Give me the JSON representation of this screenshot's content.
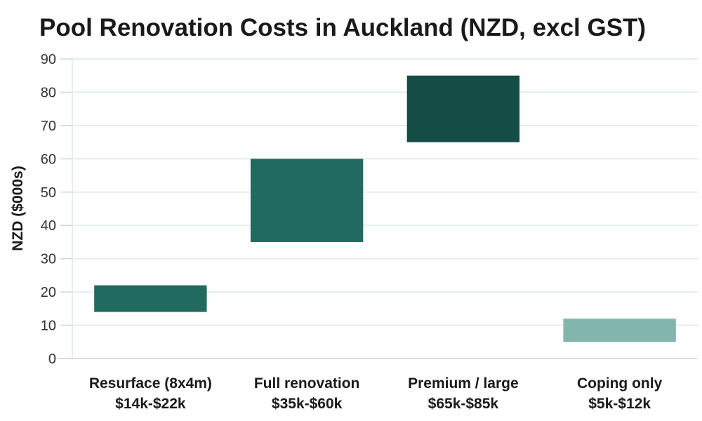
{
  "chart_data": {
    "type": "bar",
    "title": "Pool Renovation Costs in Auckland (NZD, excl GST)",
    "ylabel": "NZD ($000s)",
    "xlabel": "",
    "ylim": [
      0,
      90
    ],
    "yticks": [
      0,
      10,
      20,
      30,
      40,
      50,
      60,
      70,
      80,
      90
    ],
    "grid": true,
    "categories": [
      {
        "label": "Resurface (8x4m)",
        "range_label": "$14k-$22k",
        "low": 14,
        "high": 22,
        "color": "#206a5f"
      },
      {
        "label": "Full renovation",
        "range_label": "$35k-$60k",
        "low": 35,
        "high": 60,
        "color": "#206a5f"
      },
      {
        "label": "Premium / large",
        "range_label": "$65k-$85k",
        "low": 65,
        "high": 85,
        "color": "#154c45"
      },
      {
        "label": "Coping only",
        "range_label": "$5k-$12k",
        "low": 5,
        "high": 12,
        "color": "#82b5ae"
      }
    ]
  }
}
